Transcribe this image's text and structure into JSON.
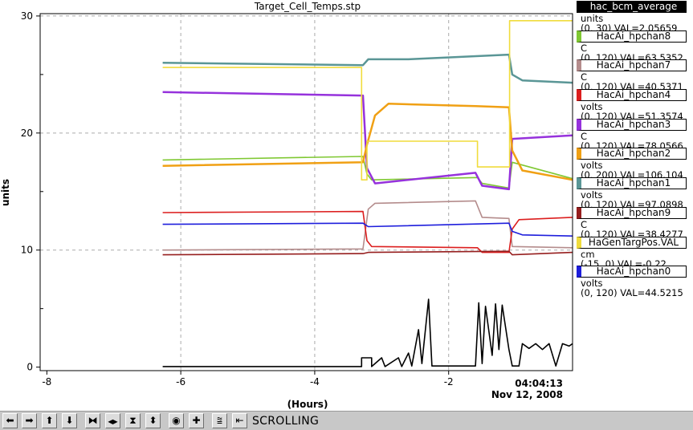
{
  "chart_data": {
    "type": "line",
    "title": "Target_Cell_Temps.stp",
    "xlabel": "(Hours)",
    "ylabel": "units",
    "xlim": [
      -8.1,
      -0.15
    ],
    "ylim": [
      -0.3,
      30.2
    ],
    "xticks": [
      -8,
      -6,
      -4,
      -2
    ],
    "xtick_labels": [
      "-8",
      "-6",
      "-4",
      "-2"
    ],
    "yticks": [
      0,
      10,
      20,
      30
    ],
    "ytick_labels": [
      "0",
      "10",
      "20",
      "30"
    ],
    "grid": true,
    "legend_position": "right",
    "timestamp": "04:04:13",
    "date": "Nov 12, 2008",
    "series": [
      {
        "name": "HacAi_hpchan8",
        "color": "#7fc832",
        "x": [
          -6.27,
          -3.28,
          -3.22,
          -3.15,
          -1.57,
          -1.5,
          -1.1,
          -1.05,
          -0.15
        ],
        "y": [
          17.7,
          18.0,
          16.5,
          16.0,
          16.2,
          15.7,
          15.3,
          17.5,
          16.1
        ]
      },
      {
        "name": "HacAi_hpchan7",
        "color": "#b48c8c",
        "x": [
          -6.27,
          -3.28,
          -3.2,
          -3.1,
          -1.6,
          -1.5,
          -1.1,
          -1.05,
          -0.15
        ],
        "y": [
          10.0,
          10.1,
          13.5,
          14.0,
          14.2,
          12.8,
          12.7,
          10.3,
          10.2
        ]
      },
      {
        "name": "HacAi_hpchan4",
        "color": "#dc1e1e",
        "x": [
          -6.27,
          -3.28,
          -3.22,
          -3.15,
          -1.57,
          -1.5,
          -1.1,
          -1.05,
          -0.95,
          -0.15
        ],
        "y": [
          13.2,
          13.3,
          10.8,
          10.3,
          10.2,
          9.8,
          9.8,
          11.8,
          12.6,
          12.8
        ]
      },
      {
        "name": "HacAi_hpchan3",
        "color": "#9632dc",
        "x": [
          -6.27,
          -3.28,
          -3.22,
          -3.1,
          -1.6,
          -1.5,
          -1.1,
          -1.05,
          -0.15
        ],
        "y": [
          23.5,
          23.2,
          17.0,
          15.7,
          16.6,
          15.5,
          15.2,
          19.5,
          19.8
        ]
      },
      {
        "name": "HacAi_hpchan2",
        "color": "#f0a014",
        "x": [
          -6.27,
          -3.28,
          -3.22,
          -3.1,
          -2.9,
          -1.6,
          -1.1,
          -1.05,
          -0.9,
          -0.15
        ],
        "y": [
          17.2,
          17.5,
          19.0,
          21.5,
          22.5,
          22.3,
          22.2,
          18.5,
          16.8,
          16.0
        ]
      },
      {
        "name": "HacAi_hpchan1",
        "color": "#5a9696",
        "x": [
          -6.27,
          -3.28,
          -3.2,
          -2.6,
          -1.1,
          -1.05,
          -0.9,
          -0.15
        ],
        "y": [
          26.0,
          25.8,
          26.3,
          26.3,
          26.7,
          25.0,
          24.5,
          24.3
        ]
      },
      {
        "name": "HacAi_hpchan9",
        "color": "#961e1e",
        "x": [
          -6.27,
          -3.28,
          -3.2,
          -1.1,
          -1.05,
          -0.15
        ],
        "y": [
          9.6,
          9.7,
          9.8,
          9.9,
          9.6,
          9.8
        ]
      },
      {
        "name": "HaGenTargPos.VAL",
        "color": "#f0dc3c",
        "x": [
          -6.27,
          -3.3,
          -3.3,
          -3.22,
          -3.22,
          -1.57,
          -1.57,
          -1.09,
          -1.09,
          -0.15
        ],
        "y": [
          25.6,
          25.6,
          16.0,
          16.0,
          19.3,
          19.3,
          17.1,
          17.1,
          29.6,
          29.6
        ]
      },
      {
        "name": "HacAi_hpchan0",
        "color": "#1e1edc",
        "x": [
          -6.27,
          -3.28,
          -3.2,
          -1.1,
          -1.05,
          -0.9,
          -0.15
        ],
        "y": [
          12.2,
          12.3,
          12.0,
          12.3,
          11.6,
          11.3,
          11.2
        ]
      },
      {
        "name": "hac_bcm_average",
        "color": "#000000",
        "x": [
          -6.27,
          -3.3,
          -3.3,
          -3.15,
          -3.15,
          -3.0,
          -2.95,
          -2.75,
          -2.7,
          -2.6,
          -2.55,
          -2.45,
          -2.4,
          -2.3,
          -2.25,
          -1.95,
          -1.6,
          -1.55,
          -1.5,
          -1.45,
          -1.35,
          -1.3,
          -1.25,
          -1.2,
          -1.1,
          -1.05,
          -0.95,
          -0.9,
          -0.8,
          -0.7,
          -0.6,
          -0.5,
          -0.4,
          -0.3,
          -0.2,
          -0.15
        ],
        "y": [
          0.05,
          0.05,
          0.8,
          0.8,
          0.05,
          0.8,
          0.05,
          0.8,
          0.05,
          1.2,
          0.1,
          3.2,
          0.3,
          5.8,
          0.1,
          0.1,
          0.1,
          5.5,
          0.3,
          5.2,
          1.0,
          5.4,
          1.5,
          5.3,
          1.5,
          0.1,
          0.1,
          2.0,
          1.6,
          2.0,
          1.5,
          2.0,
          0.1,
          2.0,
          1.8,
          2.0
        ]
      }
    ]
  },
  "legend": {
    "entries": [
      {
        "name": "hac_bcm_average",
        "color": "#000000",
        "unit": "units",
        "range_val": "(0, 30) VAL=2.05659"
      },
      {
        "name": "HacAi_hpchan8",
        "color": "#7fc832",
        "unit": "C",
        "range_val": "(0, 120) VAL=63.5352"
      },
      {
        "name": "HacAi_hpchan7",
        "color": "#b48c8c",
        "unit": "C",
        "range_val": "(0, 120) VAL=40.5371"
      },
      {
        "name": "HacAi_hpchan4",
        "color": "#dc1e1e",
        "unit": "volts",
        "range_val": "(0, 120) VAL=51.3574"
      },
      {
        "name": "HacAi_hpchan3",
        "color": "#9632dc",
        "unit": "C",
        "range_val": "(0, 120) VAL=78.0566"
      },
      {
        "name": "HacAi_hpchan2",
        "color": "#f0a014",
        "unit": "volts",
        "range_val": "(0, 200) VAL=106.104"
      },
      {
        "name": "HacAi_hpchan1",
        "color": "#5a9696",
        "unit": "volts",
        "range_val": "(0, 120) VAL=97.0898"
      },
      {
        "name": "HacAi_hpchan9",
        "color": "#961e1e",
        "unit": "C",
        "range_val": "(0, 120) VAL=38.4277"
      },
      {
        "name": "HaGenTargPos.VAL",
        "color": "#f0dc3c",
        "unit": "cm",
        "range_val": "(-15, 0) VAL=-0.22"
      },
      {
        "name": "HacAi_hpchan0",
        "color": "#1e1edc",
        "unit": "volts",
        "range_val": "(0, 120) VAL=44.5215"
      }
    ]
  },
  "toolbar": {
    "status": "SCROLLING",
    "buttons": [
      {
        "id": "scroll-left",
        "icon": "arrow-left-icon",
        "glyph": "⬅"
      },
      {
        "id": "scroll-right",
        "icon": "arrow-right-icon",
        "glyph": "➡"
      },
      {
        "id": "scroll-up",
        "icon": "arrow-up-icon",
        "glyph": "⬆"
      },
      {
        "id": "scroll-down",
        "icon": "arrow-down-icon",
        "glyph": "⬇"
      },
      {
        "id": "zoom-in-x",
        "icon": "zoom-in-x-icon",
        "glyph": "⧓"
      },
      {
        "id": "zoom-out-x",
        "icon": "zoom-out-x-icon",
        "glyph": "◀▶"
      },
      {
        "id": "zoom-in-y",
        "icon": "zoom-in-y-icon",
        "glyph": "⧗"
      },
      {
        "id": "zoom-out-y",
        "icon": "zoom-out-y-icon",
        "glyph": "⬍"
      },
      {
        "id": "autoscale",
        "icon": "autoscale-icon",
        "glyph": "◉"
      },
      {
        "id": "add-trace",
        "icon": "plus-icon",
        "glyph": "✚"
      },
      {
        "id": "toggle-grid",
        "icon": "grid-wave-icon",
        "glyph": "⩰"
      },
      {
        "id": "back-to-start",
        "icon": "skip-back-icon",
        "glyph": "⇤"
      }
    ]
  }
}
